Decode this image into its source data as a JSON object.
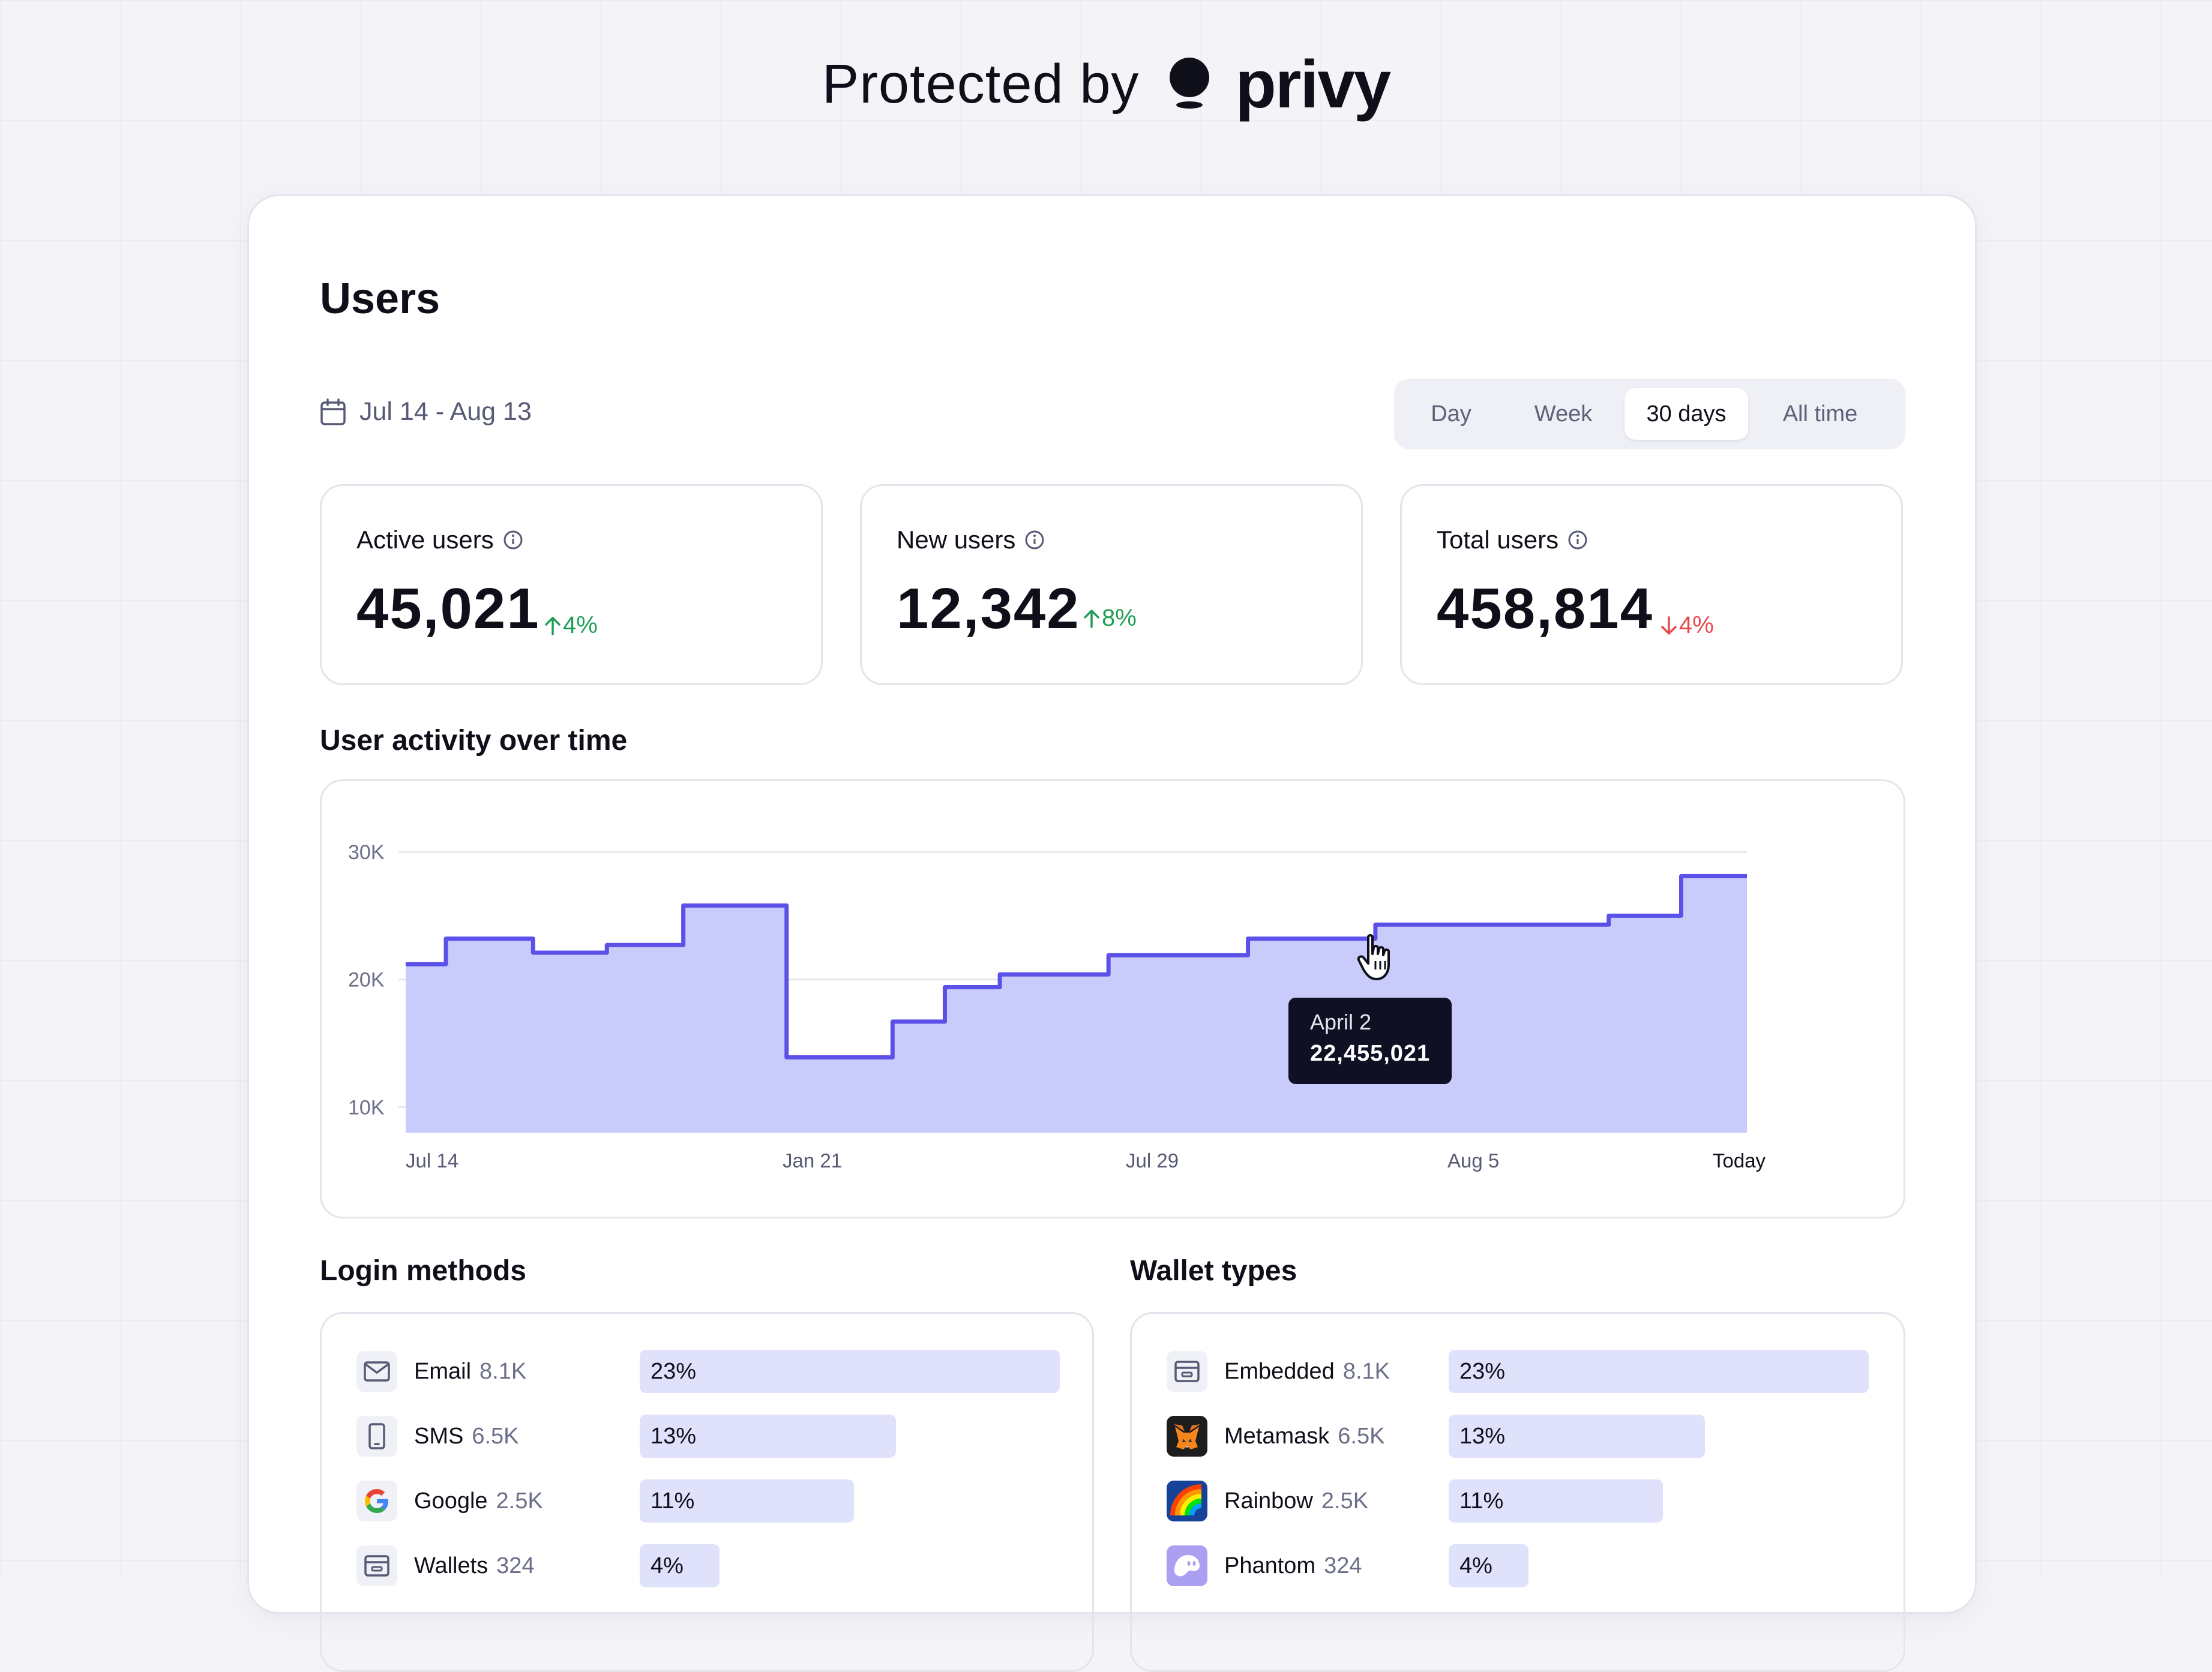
{
  "brand": {
    "prefix": "Protected by",
    "name": "privy"
  },
  "page": {
    "title": "Users",
    "date_range": "Jul 14 - Aug 13"
  },
  "range_tabs": [
    {
      "label": "Day",
      "selected": false
    },
    {
      "label": "Week",
      "selected": false
    },
    {
      "label": "30 days",
      "selected": true
    },
    {
      "label": "All time",
      "selected": false
    }
  ],
  "stats": [
    {
      "label": "Active users",
      "value": "45,021",
      "delta": "4%",
      "direction": "up"
    },
    {
      "label": "New users",
      "value": "12,342",
      "delta": "8%",
      "direction": "up"
    },
    {
      "label": "Total users",
      "value": "458,814",
      "delta": "4%",
      "direction": "down"
    }
  ],
  "activity": {
    "title": "User activity over time",
    "tooltip": {
      "date": "April 2",
      "value": "22,455,021"
    }
  },
  "chart_data": {
    "type": "area",
    "title": "User activity over time",
    "y_ticks": [
      "30K",
      "20K",
      "10K"
    ],
    "x_ticks": [
      "Jul 14",
      "Jan 21",
      "Jul 29",
      "Aug 5",
      "Today"
    ],
    "ylim": [
      8000,
      30000
    ],
    "x": [
      0,
      0.03,
      0.095,
      0.15,
      0.207,
      0.284,
      0.363,
      0.402,
      0.443,
      0.524,
      0.628,
      0.723,
      0.897,
      0.951,
      1.0
    ],
    "values": [
      21200,
      23200,
      22100,
      22700,
      25800,
      13900,
      16700,
      19400,
      20400,
      21900,
      23200,
      24300,
      25000,
      28100,
      28100
    ],
    "line_color": "#5b50e8",
    "fill_color": "#c9ccfb",
    "step": true,
    "grid": true
  },
  "login_methods": {
    "title": "Login methods",
    "items": [
      {
        "label": "Email",
        "count": "8.1K",
        "pct": "23%",
        "fraction": 1.0,
        "icon": "mail-icon"
      },
      {
        "label": "SMS",
        "count": "6.5K",
        "pct": "13%",
        "fraction": 0.61,
        "icon": "phone-icon"
      },
      {
        "label": "Google",
        "count": "2.5K",
        "pct": "11%",
        "fraction": 0.51,
        "icon": "google-icon"
      },
      {
        "label": "Wallets",
        "count": "324",
        "pct": "4%",
        "fraction": 0.19,
        "icon": "wallet-icon"
      }
    ]
  },
  "wallet_types": {
    "title": "Wallet types",
    "items": [
      {
        "label": "Embedded",
        "count": "8.1K",
        "pct": "23%",
        "fraction": 1.0,
        "icon": "embedded-wallet-icon"
      },
      {
        "label": "Metamask",
        "count": "6.5K",
        "pct": "13%",
        "fraction": 0.61,
        "icon": "metamask-icon"
      },
      {
        "label": "Rainbow",
        "count": "2.5K",
        "pct": "11%",
        "fraction": 0.51,
        "icon": "rainbow-icon"
      },
      {
        "label": "Phantom",
        "count": "324",
        "pct": "4%",
        "fraction": 0.19,
        "icon": "phantom-icon"
      }
    ]
  },
  "colors": {
    "accent": "#5b50e8",
    "area_fill": "#c9ccfb",
    "bar_fill": "#e0e2fb",
    "positive": "#1f9d55",
    "negative": "#e5484d",
    "tooltip_bg": "#101024"
  }
}
